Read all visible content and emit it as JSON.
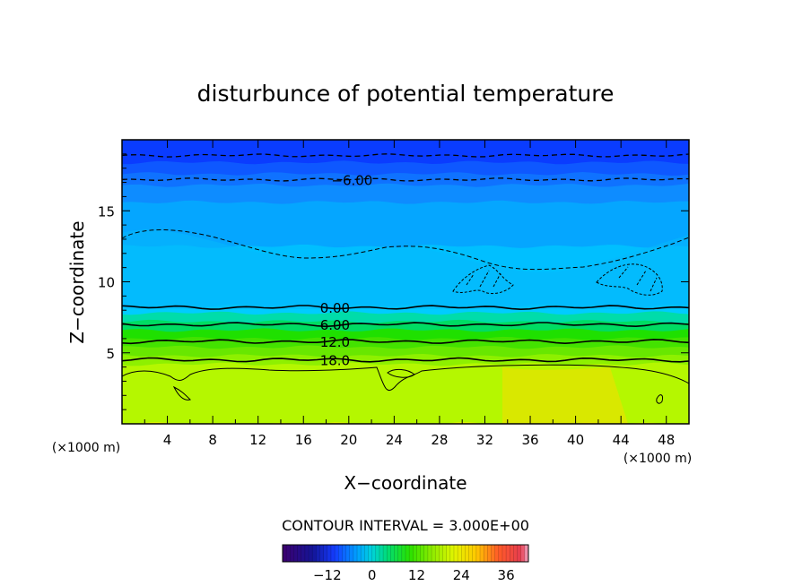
{
  "chart_data": {
    "type": "contour",
    "title": "disturbunce of potential temperature",
    "xlabel": "X−coordinate",
    "ylabel": "Z−coordinate",
    "x_unit": "(×1000 m)",
    "z_unit": "(×1000 m)",
    "xlim": [
      0,
      50
    ],
    "ylim": [
      0,
      20
    ],
    "x_ticks": [
      4,
      8,
      12,
      16,
      20,
      24,
      28,
      32,
      36,
      40,
      44,
      48
    ],
    "y_ticks": [
      5,
      10,
      15
    ],
    "contour_interval_text": "CONTOUR INTERVAL = 3.000E+00",
    "contour_labels": [
      {
        "text": "−6.00",
        "x": 18.7,
        "z": 17.2
      },
      {
        "text": "0.00",
        "x": 17.2,
        "z": 8.2
      },
      {
        "text": "6.00",
        "x": 17.2,
        "z": 7.0
      },
      {
        "text": "12.0",
        "x": 17.2,
        "z": 5.8
      },
      {
        "text": "18.0",
        "x": 17.2,
        "z": 4.5
      }
    ],
    "colorbar": {
      "range": [
        -24,
        42
      ],
      "tick_values": [
        -12,
        0,
        12,
        24,
        36
      ],
      "tick_labels": [
        "−12",
        "0",
        "12",
        "24",
        "36"
      ]
    },
    "bands": [
      {
        "z": 19.2,
        "color": "#0a3cff"
      },
      {
        "z": 18.4,
        "color": "#0e58ff"
      },
      {
        "z": 17.6,
        "color": "#0f72ff"
      },
      {
        "z": 16.8,
        "color": "#0e8cff"
      },
      {
        "z": 15.6,
        "color": "#05a6ff"
      },
      {
        "z": 12.5,
        "color": "#00bfff"
      },
      {
        "z": 8.3,
        "color": "#00ccff"
      },
      {
        "z": 7.8,
        "color": "#00dcaa"
      },
      {
        "z": 7.2,
        "color": "#00dc63"
      },
      {
        "z": 6.6,
        "color": "#1fe000"
      },
      {
        "z": 6.0,
        "color": "#43e200"
      },
      {
        "z": 5.4,
        "color": "#68e700"
      },
      {
        "z": 4.8,
        "color": "#8ef000"
      },
      {
        "z": 4.2,
        "color": "#b5f700"
      },
      {
        "z": 0.0,
        "color": "#e6f500"
      }
    ],
    "contour_levels_z": [
      {
        "z": 18.9,
        "dashed": true
      },
      {
        "z": 17.2,
        "dashed": true
      },
      {
        "z": 8.2,
        "dashed": false
      },
      {
        "z": 7.0,
        "dashed": false
      },
      {
        "z": 5.8,
        "dashed": false
      },
      {
        "z": 4.5,
        "dashed": false
      }
    ]
  }
}
